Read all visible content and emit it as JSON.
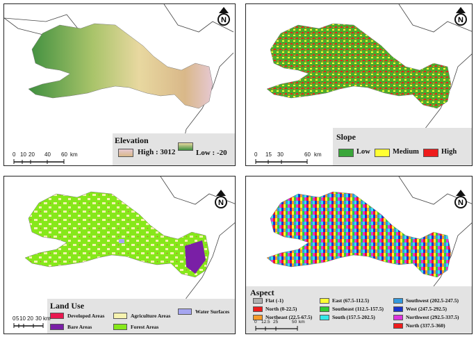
{
  "panels": {
    "elevation": {
      "legend_title": "Elevation",
      "high_label": "High : 3012",
      "low_label": "Low : -20",
      "scale_ticks": [
        "0",
        "10",
        "20",
        "40",
        "60",
        "km"
      ],
      "colors": {
        "high": "#d8a9b0",
        "mid": "#e8d8a0",
        "low": "#3f8f3f"
      }
    },
    "slope": {
      "legend_title": "Slope",
      "classes": [
        {
          "label": "Low",
          "color": "#3aa63a"
        },
        {
          "label": "Medium",
          "color": "#ffff33"
        },
        {
          "label": "High",
          "color": "#ee1c1c"
        }
      ],
      "scale_ticks": [
        "0",
        "15",
        "30",
        "60",
        "km"
      ]
    },
    "landuse": {
      "legend_title": "Land Use",
      "classes": [
        {
          "label": "Developed Areas",
          "color": "#e8174f"
        },
        {
          "label": "Agriculture Areas",
          "color": "#f6f3b0"
        },
        {
          "label": "Water Surfaces",
          "color": "#a6a6f0"
        },
        {
          "label": "Bare Areas",
          "color": "#7a1fa6"
        },
        {
          "label": "Forest Areas",
          "color": "#86e81a"
        }
      ],
      "scale_ticks": [
        "0",
        "5",
        "10",
        "20",
        "30",
        "km"
      ]
    },
    "aspect": {
      "legend_title": "Aspect",
      "classes": [
        {
          "label": "Flat (-1)",
          "color": "#b0b0b0"
        },
        {
          "label": "North (0-22.5)",
          "color": "#ee1c1c"
        },
        {
          "label": "Northeast (22.5-67.5)",
          "color": "#f59b2a"
        },
        {
          "label": "East (67.5-112.5)",
          "color": "#ffff33"
        },
        {
          "label": "Southeast (112.5-157.5)",
          "color": "#33cc33"
        },
        {
          "label": "South (157.5-202.5)",
          "color": "#33e8e8"
        },
        {
          "label": "Southwest (202.5-247.5)",
          "color": "#3399dd"
        },
        {
          "label": "West (247.5-292.5)",
          "color": "#1a33cc"
        },
        {
          "label": "Northwest (292.5-337.5)",
          "color": "#dd33dd"
        },
        {
          "label": "North (337.5-360)",
          "color": "#ee1c1c"
        }
      ],
      "scale_ticks": [
        "0",
        "12.5",
        "25",
        "50",
        "km"
      ]
    }
  },
  "north_arrow_letter": "N"
}
